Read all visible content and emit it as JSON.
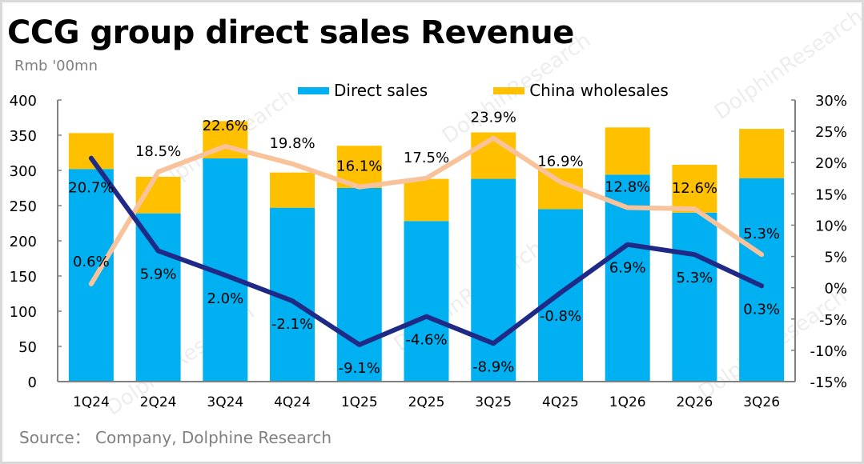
{
  "header": {
    "title": "CCG group direct sales Revenue",
    "unit": "Rmb '00mn"
  },
  "footer": {
    "source": "Source：  Company, Dolphine Research"
  },
  "watermark": "DolphinResearch",
  "colors": {
    "direct_sales": "#00B0F0",
    "china_wholesales": "#FFC000",
    "line_navy": "#1F2A87",
    "line_peach": "#F8C29A",
    "axis": "#808080"
  },
  "chart_data": {
    "type": "bar",
    "stacked": true,
    "title": "CCG group direct sales Revenue",
    "ylabel": "Rmb '00mn",
    "xlabel": "",
    "categories": [
      "1Q24",
      "2Q24",
      "3Q24",
      "4Q24",
      "1Q25",
      "2Q25",
      "3Q25",
      "4Q25",
      "1Q26",
      "2Q26",
      "3Q26"
    ],
    "ylim": [
      0,
      400
    ],
    "yticks": [
      0,
      50,
      100,
      150,
      200,
      250,
      300,
      350,
      400
    ],
    "ytick_labels": [
      "0",
      "50",
      "100",
      "150",
      "200",
      "250",
      "300",
      "350",
      "400"
    ],
    "y2lim": [
      -15,
      30
    ],
    "y2ticks": [
      -15,
      -10,
      -5,
      0,
      5,
      10,
      15,
      20,
      25,
      30
    ],
    "y2tick_labels": [
      "-15%",
      "-10%",
      "-5%",
      "0%",
      "5%",
      "10%",
      "15%",
      "20%",
      "25%",
      "30%"
    ],
    "grid": false,
    "legend_position": "top-center",
    "series": [
      {
        "name": "Direct sales",
        "type": "bar",
        "axis": "left",
        "color_key": "direct_sales",
        "values": [
          302,
          239,
          317,
          247,
          275,
          228,
          288,
          245,
          294,
          240,
          289
        ]
      },
      {
        "name": "China wholesales",
        "type": "bar",
        "axis": "left",
        "color_key": "china_wholesales",
        "values": [
          51,
          52,
          53,
          50,
          60,
          60,
          66,
          58,
          67,
          68,
          70
        ]
      },
      {
        "name": "line-navy",
        "type": "line",
        "axis": "right",
        "color_key": "line_navy",
        "in_legend": false,
        "values": [
          20.7,
          5.9,
          2.0,
          -2.1,
          -9.1,
          -4.6,
          -8.9,
          -0.8,
          6.9,
          5.3,
          0.3
        ],
        "labels": [
          "20.7%",
          "5.9%",
          "2.0%",
          "-2.1%",
          "-9.1%",
          "-4.6%",
          "-8.9%",
          "-0.8%",
          "6.9%",
          "5.3%",
          "0.3%"
        ]
      },
      {
        "name": "line-peach",
        "type": "line",
        "axis": "right",
        "color_key": "line_peach",
        "in_legend": false,
        "values": [
          0.6,
          18.5,
          22.6,
          19.8,
          16.1,
          17.5,
          23.9,
          16.9,
          12.8,
          12.6,
          5.3
        ],
        "labels": [
          "0.6%",
          "18.5%",
          "22.6%",
          "19.8%",
          "16.1%",
          "17.5%",
          "23.9%",
          "16.9%",
          "12.8%",
          "12.6%",
          "5.3%"
        ]
      }
    ],
    "legend": [
      "Direct sales",
      "China wholesales"
    ]
  }
}
